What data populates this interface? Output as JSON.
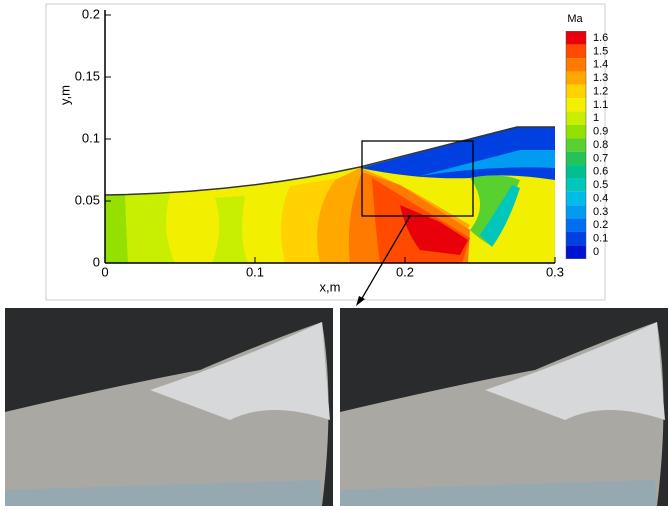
{
  "chart_data": {
    "type": "contour",
    "xlabel": "x,m",
    "ylabel": "y,m",
    "xlim": [
      0,
      0.3
    ],
    "ylim": [
      0,
      0.2
    ],
    "xticks": [
      0,
      0.1,
      0.2,
      0.3
    ],
    "yticks": [
      0,
      0.05,
      0.1,
      0.15,
      0.2
    ],
    "colorbar": {
      "title": "Ma",
      "levels": [
        1.6,
        1.5,
        1.4,
        1.3,
        1.2,
        1.1,
        1,
        0.9,
        0.8,
        0.7,
        0.6,
        0.5,
        0.4,
        0.3,
        0.2,
        0.1,
        0
      ],
      "colors": [
        "#e8000b",
        "#ff4a00",
        "#ff7a00",
        "#ffa800",
        "#ffd200",
        "#f2f000",
        "#c8ee00",
        "#94e000",
        "#58d030",
        "#22c45a",
        "#00c08e",
        "#00c6bc",
        "#00bce8",
        "#009cf2",
        "#006ef0",
        "#0040e0",
        "#0012d0"
      ]
    }
  }
}
